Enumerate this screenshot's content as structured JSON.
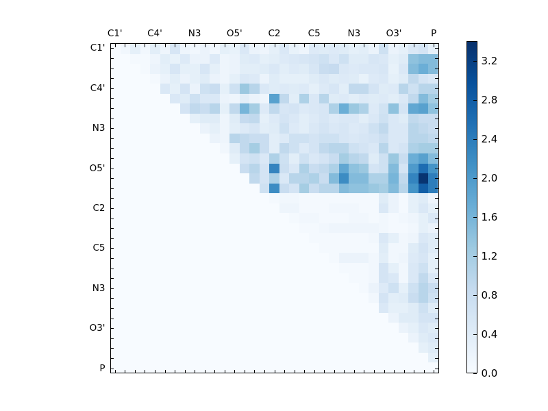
{
  "figure": {
    "background": "#ffffff",
    "spine_color": "#000000",
    "tick_color": "#000000"
  },
  "chart_data": {
    "type": "heatmap",
    "colormap": "Blues",
    "vmin": 0.0,
    "vmax": 3.4,
    "n": 33,
    "x_tick_labels": [
      "C1'",
      "C4'",
      "N3",
      "O5'",
      "C2",
      "C5",
      "N3",
      "O3'",
      "P"
    ],
    "y_tick_labels": [
      "C1'",
      "C4'",
      "N3",
      "O5'",
      "C2",
      "C5",
      "N3",
      "O3'",
      "P"
    ],
    "tick_label_positions": [
      0,
      4,
      8,
      12,
      16,
      20,
      24,
      28,
      32
    ],
    "colorbar": {
      "tick_values": [
        0.0,
        0.4,
        0.8,
        1.2,
        1.6,
        2.0,
        2.4,
        2.8,
        3.2
      ],
      "tick_labels": [
        "0.0",
        "0.4",
        "0.8",
        "1.2",
        "1.6",
        "2.0",
        "2.4",
        "2.8",
        "3.2"
      ],
      "gradient_stops": [
        "#f7fbff",
        "#deebf7",
        "#c6dbef",
        "#9ecae1",
        "#6baed6",
        "#4292c6",
        "#2171b5",
        "#08519c",
        "#08306b"
      ]
    },
    "matrix": [
      [
        0,
        0.1,
        0.3,
        0.1,
        0.35,
        0.15,
        0.55,
        0.15,
        0.1,
        0.2,
        0.1,
        0.3,
        0.25,
        0.5,
        0.2,
        0.15,
        0.3,
        0.5,
        0.25,
        0.15,
        0.45,
        0.4,
        0.45,
        0.4,
        0.3,
        0.35,
        0.2,
        0.7,
        0.2,
        0.3,
        0.5,
        0.6,
        0.3
      ],
      [
        0,
        0,
        0.05,
        0.05,
        0.15,
        0.35,
        0.25,
        0.45,
        0.2,
        0.2,
        0.45,
        0.15,
        0.2,
        0.4,
        0.45,
        0.3,
        0.35,
        0.45,
        0.5,
        0.55,
        0.6,
        0.7,
        0.5,
        0.7,
        0.4,
        0.4,
        0.55,
        0.5,
        0.3,
        0.4,
        1.4,
        1.5,
        1.5
      ],
      [
        0,
        0,
        0,
        0.05,
        0.2,
        0.3,
        0.55,
        0.3,
        0.3,
        0.55,
        0.3,
        0.15,
        0.2,
        0.35,
        0.35,
        0.4,
        0.5,
        0.35,
        0.45,
        0.4,
        0.55,
        0.8,
        0.85,
        0.5,
        0.45,
        0.5,
        0.5,
        0.55,
        0.25,
        0.5,
        1.5,
        1.7,
        1.5
      ],
      [
        0,
        0,
        0,
        0,
        0.05,
        0.2,
        0.35,
        0.2,
        0.3,
        0.4,
        0.2,
        0.15,
        0.3,
        0.5,
        0.45,
        0.2,
        0.4,
        0.3,
        0.3,
        0.3,
        0.4,
        0.5,
        0.4,
        0.45,
        0.4,
        0.25,
        0.45,
        0.5,
        0.3,
        0.4,
        0.9,
        0.6,
        0.5
      ],
      [
        0,
        0,
        0,
        0,
        0,
        0.5,
        0.3,
        0.6,
        0.2,
        0.7,
        0.8,
        0.3,
        0.7,
        1.3,
        1.0,
        0.5,
        0.4,
        0.45,
        0.4,
        0.45,
        0.3,
        0.45,
        0.55,
        0.35,
        0.9,
        0.9,
        0.6,
        0.4,
        0.45,
        1.0,
        0.7,
        1.0,
        1.0
      ],
      [
        0,
        0,
        0,
        0,
        0,
        0,
        0.5,
        0.4,
        0.7,
        0.5,
        0.5,
        0.2,
        0.15,
        0.35,
        0.2,
        0.15,
        1.9,
        0.9,
        0.35,
        1.1,
        0.5,
        1.0,
        0.4,
        0.45,
        0.35,
        0.45,
        0.4,
        0.45,
        0.35,
        0.5,
        0.9,
        1.5,
        1.2
      ],
      [
        0,
        0,
        0,
        0,
        0,
        0,
        0,
        0.6,
        0.9,
        0.8,
        1.0,
        0.3,
        0.9,
        1.6,
        1.2,
        0.45,
        0.9,
        0.55,
        0.6,
        0.45,
        0.5,
        0.55,
        1.1,
        1.7,
        1.3,
        1.1,
        0.45,
        0.65,
        1.4,
        0.6,
        1.8,
        1.9,
        1.4
      ],
      [
        0,
        0,
        0,
        0,
        0,
        0,
        0,
        0,
        0.3,
        0.4,
        0.4,
        0.15,
        0.4,
        0.85,
        0.9,
        0.3,
        0.45,
        0.6,
        0.5,
        0.35,
        0.45,
        0.55,
        0.45,
        0.5,
        0.5,
        0.35,
        0.5,
        0.7,
        0.5,
        0.4,
        0.9,
        0.8,
        0.8
      ],
      [
        0,
        0,
        0,
        0,
        0,
        0,
        0,
        0,
        0,
        0.2,
        0.3,
        0.15,
        0.35,
        0.45,
        0.55,
        0.35,
        0.4,
        0.7,
        0.45,
        0.35,
        0.5,
        0.6,
        0.5,
        0.55,
        0.45,
        0.5,
        0.7,
        0.9,
        0.5,
        0.5,
        1.0,
        0.9,
        0.8
      ],
      [
        0,
        0,
        0,
        0,
        0,
        0,
        0,
        0,
        0,
        0,
        0.2,
        0.15,
        1.0,
        0.9,
        0.8,
        0.8,
        0.35,
        0.45,
        0.7,
        0.7,
        0.6,
        0.7,
        0.7,
        0.55,
        0.5,
        0.55,
        0.6,
        0.75,
        0.5,
        0.5,
        1.0,
        1.0,
        0.9
      ],
      [
        0,
        0,
        0,
        0,
        0,
        0,
        0,
        0,
        0,
        0,
        0,
        0.1,
        0.4,
        0.9,
        1.2,
        0.8,
        0.35,
        0.9,
        0.7,
        0.45,
        0.6,
        0.9,
        1.0,
        1.0,
        0.7,
        0.6,
        0.5,
        1.0,
        0.5,
        0.6,
        1.1,
        1.2,
        1.2
      ],
      [
        0,
        0,
        0,
        0,
        0,
        0,
        0,
        0,
        0,
        0,
        0,
        0,
        0.3,
        0.6,
        0.7,
        0.5,
        1.1,
        0.7,
        0.35,
        0.7,
        0.5,
        0.6,
        0.8,
        1.2,
        1.0,
        0.9,
        0.4,
        0.7,
        1.3,
        0.8,
        1.7,
        1.9,
        1.5
      ],
      [
        0,
        0,
        0,
        0,
        0,
        0,
        0,
        0,
        0,
        0,
        0,
        0,
        0,
        0.8,
        1.0,
        0.6,
        2.3,
        0.75,
        0.5,
        1.1,
        0.8,
        0.9,
        1.1,
        1.8,
        1.4,
        1.3,
        0.6,
        0.7,
        1.5,
        0.6,
        2.0,
        2.6,
        2.1
      ],
      [
        0,
        0,
        0,
        0,
        0,
        0,
        0,
        0,
        0,
        0,
        0,
        0,
        0,
        0,
        0.9,
        0.6,
        1.1,
        0.5,
        1.0,
        1.0,
        1.1,
        0.8,
        1.5,
        2.2,
        1.5,
        1.5,
        1.1,
        1.1,
        1.6,
        0.9,
        2.3,
        3.35,
        2.4
      ],
      [
        0,
        0,
        0,
        0,
        0,
        0,
        0,
        0,
        0,
        0,
        0,
        0,
        0,
        0,
        0,
        0.7,
        2.2,
        0.8,
        0.6,
        1.2,
        0.8,
        1.0,
        1.0,
        1.5,
        1.4,
        1.4,
        1.3,
        1.2,
        1.5,
        1.0,
        2.1,
        2.8,
        2.4
      ],
      [
        0,
        0,
        0,
        0,
        0,
        0,
        0,
        0,
        0,
        0,
        0,
        0,
        0,
        0,
        0,
        0,
        0.05,
        0.1,
        0.1,
        0.05,
        0.05,
        0.05,
        0.05,
        0.05,
        0.05,
        0.05,
        0.05,
        0.4,
        0.2,
        0.05,
        0.3,
        0.4,
        0.15
      ],
      [
        0,
        0,
        0,
        0,
        0,
        0,
        0,
        0,
        0,
        0,
        0,
        0,
        0,
        0,
        0,
        0,
        0,
        0.15,
        0.15,
        0.05,
        0.05,
        0.05,
        0.1,
        0.1,
        0.1,
        0.05,
        0.05,
        0.5,
        0.2,
        0.05,
        0.3,
        0.5,
        0.3
      ],
      [
        0,
        0,
        0,
        0,
        0,
        0,
        0,
        0,
        0,
        0,
        0,
        0,
        0,
        0,
        0,
        0,
        0,
        0,
        0.05,
        0.1,
        0.1,
        0.05,
        0.05,
        0.05,
        0.1,
        0.1,
        0.05,
        0.1,
        0.05,
        0.1,
        0.15,
        0.3,
        0.5
      ],
      [
        0,
        0,
        0,
        0,
        0,
        0,
        0,
        0,
        0,
        0,
        0,
        0,
        0,
        0,
        0,
        0,
        0,
        0,
        0,
        0.05,
        0.05,
        0.1,
        0.15,
        0.15,
        0.15,
        0.15,
        0.15,
        0.1,
        0.05,
        0.05,
        0.1,
        0.3,
        0.2
      ],
      [
        0,
        0,
        0,
        0,
        0,
        0,
        0,
        0,
        0,
        0,
        0,
        0,
        0,
        0,
        0,
        0,
        0,
        0,
        0,
        0,
        0.05,
        0.05,
        0.05,
        0.05,
        0.05,
        0.05,
        0.1,
        0.5,
        0.3,
        0.1,
        0.15,
        0.5,
        0.4
      ],
      [
        0,
        0,
        0,
        0,
        0,
        0,
        0,
        0,
        0,
        0,
        0,
        0,
        0,
        0,
        0,
        0,
        0,
        0,
        0,
        0,
        0,
        0.05,
        0.05,
        0.05,
        0.05,
        0.05,
        0.05,
        0.4,
        0.1,
        0.1,
        0.4,
        0.6,
        0.4
      ],
      [
        0,
        0,
        0,
        0,
        0,
        0,
        0,
        0,
        0,
        0,
        0,
        0,
        0,
        0,
        0,
        0,
        0,
        0,
        0,
        0,
        0,
        0,
        0.05,
        0.2,
        0.2,
        0.2,
        0.1,
        0.35,
        0.1,
        0.15,
        0.45,
        0.55,
        0.3
      ],
      [
        0,
        0,
        0,
        0,
        0,
        0,
        0,
        0,
        0,
        0,
        0,
        0,
        0,
        0,
        0,
        0,
        0,
        0,
        0,
        0,
        0,
        0,
        0,
        0.05,
        0.05,
        0.05,
        0.1,
        0.6,
        0.3,
        0.1,
        0.5,
        0.7,
        0.3
      ],
      [
        0,
        0,
        0,
        0,
        0,
        0,
        0,
        0,
        0,
        0,
        0,
        0,
        0,
        0,
        0,
        0,
        0,
        0,
        0,
        0,
        0,
        0,
        0,
        0,
        0.05,
        0.05,
        0.1,
        0.6,
        0.5,
        0.1,
        0.5,
        0.9,
        0.5
      ],
      [
        0,
        0,
        0,
        0,
        0,
        0,
        0,
        0,
        0,
        0,
        0,
        0,
        0,
        0,
        0,
        0,
        0,
        0,
        0,
        0,
        0,
        0,
        0,
        0,
        0,
        0.05,
        0.2,
        0.45,
        0.7,
        0.3,
        0.7,
        1.0,
        0.8
      ],
      [
        0,
        0,
        0,
        0,
        0,
        0,
        0,
        0,
        0,
        0,
        0,
        0,
        0,
        0,
        0,
        0,
        0,
        0,
        0,
        0,
        0,
        0,
        0,
        0,
        0,
        0,
        0.1,
        0.6,
        0.35,
        0.4,
        0.8,
        1.0,
        0.7
      ],
      [
        0,
        0,
        0,
        0,
        0,
        0,
        0,
        0,
        0,
        0,
        0,
        0,
        0,
        0,
        0,
        0,
        0,
        0,
        0,
        0,
        0,
        0,
        0,
        0,
        0,
        0,
        0,
        0.5,
        0.3,
        0.3,
        0.4,
        0.7,
        0.4
      ],
      [
        0,
        0,
        0,
        0,
        0,
        0,
        0,
        0,
        0,
        0,
        0,
        0,
        0,
        0,
        0,
        0,
        0,
        0,
        0,
        0,
        0,
        0,
        0,
        0,
        0,
        0,
        0,
        0,
        0.2,
        0.4,
        0.4,
        0.6,
        0.6
      ],
      [
        0,
        0,
        0,
        0,
        0,
        0,
        0,
        0,
        0,
        0,
        0,
        0,
        0,
        0,
        0,
        0,
        0,
        0,
        0,
        0,
        0,
        0,
        0,
        0,
        0,
        0,
        0,
        0,
        0,
        0.2,
        0.3,
        0.5,
        0.4
      ],
      [
        0,
        0,
        0,
        0,
        0,
        0,
        0,
        0,
        0,
        0,
        0,
        0,
        0,
        0,
        0,
        0,
        0,
        0,
        0,
        0,
        0,
        0,
        0,
        0,
        0,
        0,
        0,
        0,
        0,
        0,
        0.2,
        0.4,
        0.5
      ],
      [
        0,
        0,
        0,
        0,
        0,
        0,
        0,
        0,
        0,
        0,
        0,
        0,
        0,
        0,
        0,
        0,
        0,
        0,
        0,
        0,
        0,
        0,
        0,
        0,
        0,
        0,
        0,
        0,
        0,
        0,
        0,
        0.3,
        0.4
      ],
      [
        0,
        0,
        0,
        0,
        0,
        0,
        0,
        0,
        0,
        0,
        0,
        0,
        0,
        0,
        0,
        0,
        0,
        0,
        0,
        0,
        0,
        0,
        0,
        0,
        0,
        0,
        0,
        0,
        0,
        0,
        0,
        0,
        0.3
      ],
      [
        0,
        0,
        0,
        0,
        0,
        0,
        0,
        0,
        0,
        0,
        0,
        0,
        0,
        0,
        0,
        0,
        0,
        0,
        0,
        0,
        0,
        0,
        0,
        0,
        0,
        0,
        0,
        0,
        0,
        0,
        0,
        0,
        0
      ]
    ]
  }
}
